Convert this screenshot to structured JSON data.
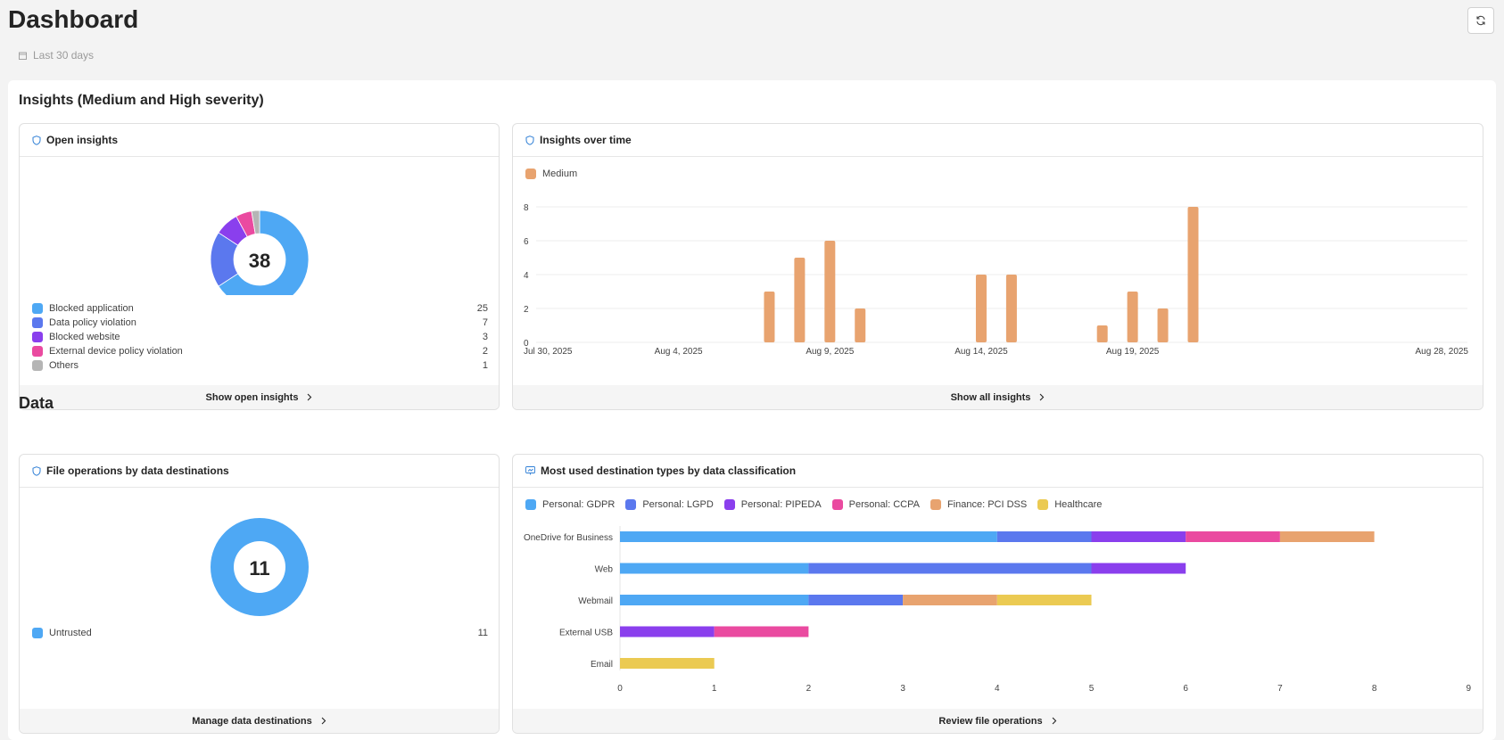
{
  "header": {
    "title": "Dashboard",
    "date_range": "Last 30 days"
  },
  "colors": {
    "gdpr": "#4ea8f4",
    "lgpd": "#5b78ee",
    "pipeda": "#8a3fed",
    "ccpa": "#ea4aa0",
    "pcidss": "#e8a36f",
    "healthcare": "#ebca52",
    "others": "#b5b5b5",
    "medium": "#e8a36f",
    "accent": "#2f7fd6"
  },
  "insights": {
    "section_title": "Insights (Medium and High severity)",
    "open_insights": {
      "title": "Open insights",
      "total": "38",
      "items": [
        {
          "label": "Blocked application",
          "count": 25,
          "color": "#4ea8f4"
        },
        {
          "label": "Data policy violation",
          "count": 7,
          "color": "#5b78ee"
        },
        {
          "label": "Blocked website",
          "count": 3,
          "color": "#8a3fed"
        },
        {
          "label": "External device policy violation",
          "count": 2,
          "color": "#ea4aa0"
        },
        {
          "label": "Others",
          "count": 1,
          "color": "#b5b5b5"
        }
      ],
      "footer": "Show open insights"
    },
    "over_time": {
      "title": "Insights over time",
      "footer": "Show all insights"
    }
  },
  "data_section": {
    "title": "Data",
    "file_ops": {
      "title": "File operations by data destinations",
      "total": "11",
      "items": [
        {
          "label": "Untrusted",
          "count": 11,
          "color": "#4ea8f4"
        }
      ],
      "footer": "Manage data destinations"
    },
    "destinations": {
      "title": "Most used destination types by data classification",
      "footer": "Review file operations"
    }
  },
  "chart_data": [
    {
      "type": "bar",
      "id": "insights-over-time",
      "series": [
        {
          "name": "Medium",
          "color": "#e8a36f",
          "points": [
            {
              "x": "2025-08-07",
              "y": 3
            },
            {
              "x": "2025-08-08",
              "y": 5
            },
            {
              "x": "2025-08-09",
              "y": 6
            },
            {
              "x": "2025-08-10",
              "y": 2
            },
            {
              "x": "2025-08-14",
              "y": 4
            },
            {
              "x": "2025-08-15",
              "y": 4
            },
            {
              "x": "2025-08-18",
              "y": 1
            },
            {
              "x": "2025-08-19",
              "y": 3
            },
            {
              "x": "2025-08-20",
              "y": 2
            },
            {
              "x": "2025-08-21",
              "y": 8
            }
          ]
        }
      ],
      "x_range": [
        "2025-07-30",
        "2025-08-28"
      ],
      "x_ticks": [
        "Jul 30, 2025",
        "Aug 4, 2025",
        "Aug 9, 2025",
        "Aug 14, 2025",
        "Aug 19, 2025",
        "Aug 28, 2025"
      ],
      "x_tick_dates": [
        "2025-07-30",
        "2025-08-04",
        "2025-08-09",
        "2025-08-14",
        "2025-08-19",
        "2025-08-28"
      ],
      "y_ticks": [
        0,
        2,
        4,
        6,
        8
      ],
      "ylim": [
        0,
        8
      ],
      "grid": true,
      "legend_position": "top-left"
    },
    {
      "type": "bar",
      "id": "destination-types",
      "orientation": "horizontal",
      "stacked": true,
      "categories": [
        "OneDrive for Business",
        "Web",
        "Webmail",
        "External USB",
        "Email"
      ],
      "series": [
        {
          "name": "Personal: GDPR",
          "color": "#4ea8f4",
          "values": [
            4,
            2,
            2,
            0,
            0
          ]
        },
        {
          "name": "Personal: LGPD",
          "color": "#5b78ee",
          "values": [
            1,
            3,
            1,
            0,
            0
          ]
        },
        {
          "name": "Personal: PIPEDA",
          "color": "#8a3fed",
          "values": [
            1,
            1,
            0,
            1,
            0
          ]
        },
        {
          "name": "Personal: CCPA",
          "color": "#ea4aa0",
          "values": [
            1,
            0,
            0,
            1,
            0
          ]
        },
        {
          "name": "Finance: PCI DSS",
          "color": "#e8a36f",
          "values": [
            1,
            0,
            1,
            0,
            0
          ]
        },
        {
          "name": "Healthcare",
          "color": "#ebca52",
          "values": [
            0,
            0,
            1,
            0,
            1
          ]
        }
      ],
      "x_ticks": [
        0,
        1,
        2,
        3,
        4,
        5,
        6,
        7,
        8,
        9
      ],
      "xlim": [
        0,
        9
      ],
      "grid": false,
      "legend_position": "top-left"
    }
  ]
}
